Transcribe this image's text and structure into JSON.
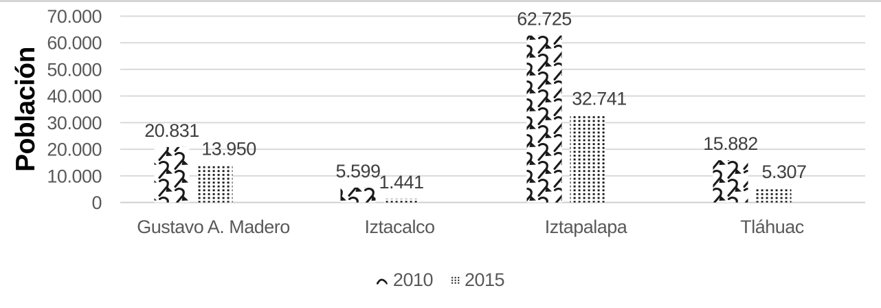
{
  "window": {
    "top_edge_color": "#d5d5d5"
  },
  "chart_data": {
    "type": "bar",
    "title": "",
    "xlabel": "",
    "ylabel": "Población",
    "categories": [
      "Gustavo A. Madero",
      "Iztacalco",
      "Iztapalapa",
      "Tláhuac"
    ],
    "series": [
      {
        "name": "2010",
        "values": [
          20831,
          5599,
          62725,
          15882
        ],
        "value_labels": [
          "20.831",
          "5.599",
          "62.725",
          "15.882"
        ],
        "pattern": "diagonal-shingle"
      },
      {
        "name": "2015",
        "values": [
          13950,
          1441,
          32741,
          5307
        ],
        "value_labels": [
          "13.950",
          "1.441",
          "32.741",
          "5.307"
        ],
        "pattern": "dotted-grid"
      }
    ],
    "ylim": [
      0,
      70000
    ],
    "yticks": [
      {
        "value": 0,
        "label": "0"
      },
      {
        "value": 10000,
        "label": "10.000"
      },
      {
        "value": 20000,
        "label": "20.000"
      },
      {
        "value": 30000,
        "label": "30.000"
      },
      {
        "value": 40000,
        "label": "40.000"
      },
      {
        "value": 50000,
        "label": "50.000"
      },
      {
        "value": 60000,
        "label": "60.000"
      },
      {
        "value": 70000,
        "label": "70.000"
      }
    ],
    "grid": true,
    "legend_position": "bottom",
    "colors": {
      "pattern_foreground": "#1a1a1a",
      "bar_background": "#ffffff",
      "gridline": "#d9d9d9",
      "axis_line": "#cfcfcf",
      "tick_text": "#595959",
      "category_text": "#595959",
      "value_label_text": "#3f3f3f",
      "y_axis_title_text": "#000000",
      "legend_text": "#595959"
    }
  },
  "legend": {
    "items": [
      {
        "label": "2010",
        "swatch": "shingle-pattern"
      },
      {
        "label": "2015",
        "swatch": "dotted-pattern"
      }
    ]
  }
}
